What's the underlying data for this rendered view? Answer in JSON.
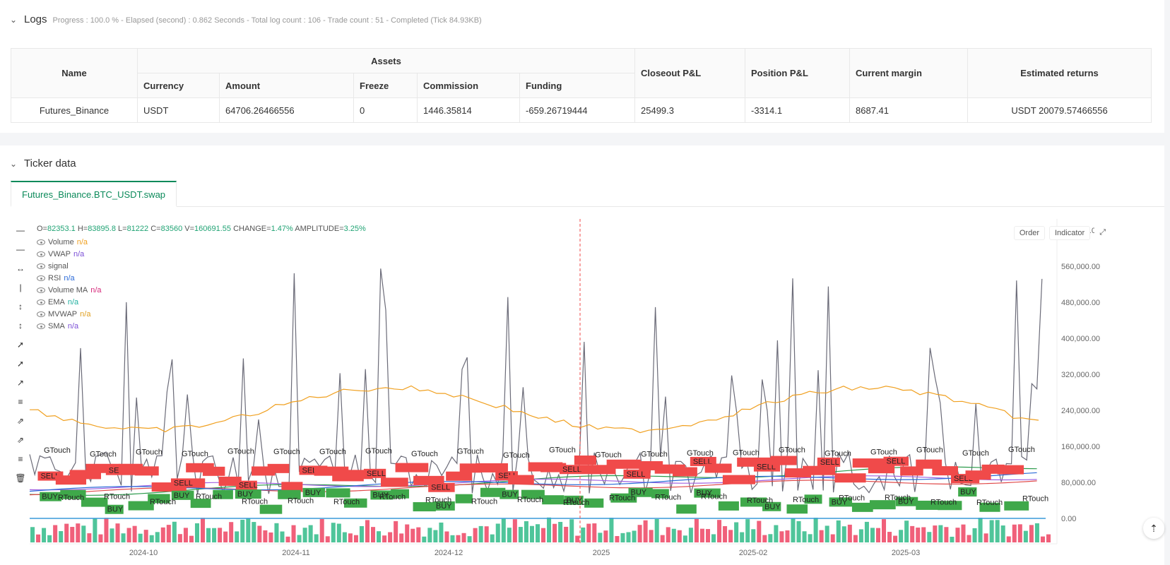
{
  "logs": {
    "title": "Logs",
    "status": "Progress : 100.0 % - Elapsed (second) : 0.862  Seconds - Total log count : 106 - Trade count : 51 - Completed (Tick 84.93KB)"
  },
  "assets_table": {
    "headers": {
      "name": "Name",
      "assets": "Assets",
      "currency": "Currency",
      "amount": "Amount",
      "freeze": "Freeze",
      "commission": "Commission",
      "funding": "Funding",
      "closeout": "Closeout P&L",
      "position": "Position P&L",
      "margin": "Current margin",
      "returns": "Estimated returns"
    },
    "row": {
      "name": "Futures_Binance",
      "currency": "USDT",
      "amount": "64706.26466556",
      "freeze": "0",
      "commission": "1446.35814",
      "funding": "-659.26719444",
      "closeout": "25499.3",
      "position": "-3314.1",
      "margin": "8687.41",
      "returns": "USDT 20079.57466556"
    }
  },
  "ticker": {
    "title": "Ticker data",
    "tab": "Futures_Binance.BTC_USDT.swap",
    "buttons": {
      "order": "Order",
      "indicator": "Indicator"
    },
    "ohlc": {
      "o_label": "O=",
      "o": "82353.1",
      "h_label": "H=",
      "h": "83895.8",
      "l_label": "L=",
      "l": "81222",
      "c_label": "C=",
      "c": "83560",
      "v_label": "V=",
      "v": "160691.55",
      "change_label": "CHANGE=",
      "change": "1.47%",
      "amp_label": "AMPLITUDE=",
      "amp": "3.25%"
    },
    "legend": [
      {
        "name": "Volume",
        "value": "n/a",
        "color": "#f0a020"
      },
      {
        "name": "VWAP",
        "value": "n/a",
        "color": "#7b4fd6"
      },
      {
        "name": "signal",
        "value": "",
        "color": "#555555"
      },
      {
        "name": "RSI",
        "value": "n/a",
        "color": "#2a6ad8"
      },
      {
        "name": "Volume MA",
        "value": "n/a",
        "color": "#d62a7b"
      },
      {
        "name": "EMA",
        "value": "n/a",
        "color": "#20b0a0"
      },
      {
        "name": "MVWAP",
        "value": "n/a",
        "color": "#e0a020"
      },
      {
        "name": "SMA",
        "value": "n/a",
        "color": "#7b4fd6"
      }
    ]
  },
  "chart_data": {
    "type": "line",
    "price_ticks": [
      "640,000.00",
      "560,000.00",
      "480,000.00",
      "400,000.00",
      "320,000.00",
      "240,000.00",
      "160,000.00",
      "80,000.00",
      "0.00"
    ],
    "date_ticks": [
      "2024-10",
      "2024-11",
      "2024-12",
      "2025",
      "2025-02",
      "2025-03"
    ],
    "signal_labels": {
      "buy": "BUY",
      "sell": "SELL",
      "touch": "GTouch",
      "rtouch": "RTouch"
    },
    "colors": {
      "up": "#4fc59a",
      "down": "#f0607a",
      "buy": "#3fa84a",
      "sell": "#f04a4a",
      "volume_line": "#6b6b78",
      "orange": "#f0a020",
      "accent": "#0b8a5a"
    }
  }
}
